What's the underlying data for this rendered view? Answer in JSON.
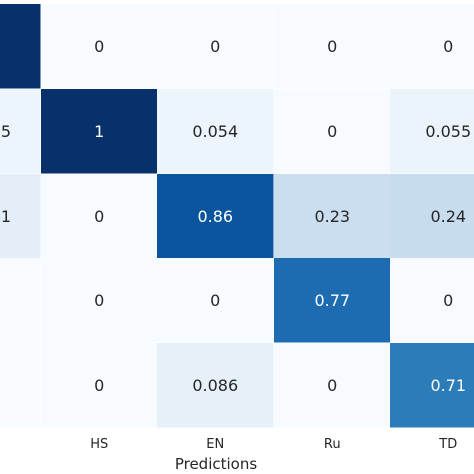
{
  "chart_data": {
    "type": "heatmap",
    "xlabel": "Predictions",
    "x_tick_labels": [
      "",
      "HS",
      "EN",
      "Ru",
      "TD"
    ],
    "row_labels_visible": [
      "",
      "5",
      "1",
      "",
      ""
    ],
    "cells": [
      [
        1.0,
        0,
        0,
        0,
        0
      ],
      [
        0.05,
        1,
        0.054,
        0,
        0.055
      ],
      [
        0.1,
        0,
        0.86,
        0.23,
        0.24
      ],
      [
        0,
        0,
        0,
        0.77,
        0
      ],
      [
        0,
        0,
        0.086,
        0,
        0.71
      ]
    ],
    "cell_labels": [
      [
        "",
        "0",
        "0",
        "0",
        "0"
      ],
      [
        "5",
        "1",
        "0.054",
        "0",
        "0.055"
      ],
      [
        "1",
        "0",
        "0.86",
        "0.23",
        "0.24"
      ],
      [
        "",
        "0",
        "0",
        "0.77",
        "0"
      ],
      [
        "",
        "0",
        "0.086",
        "0",
        "0.71"
      ]
    ],
    "colormap": "Blues",
    "vmin": 0,
    "vmax": 1,
    "grid": false
  }
}
